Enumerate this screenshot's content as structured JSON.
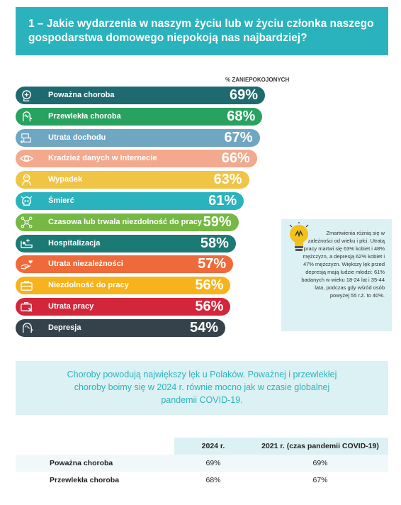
{
  "title": "1 – Jakie wydarzenia w naszym życiu lub w życiu członka naszego gospodarstwa domowego niepokoją nas najbardziej?",
  "column_label": "% ZANIEPOKOJONYCH",
  "chart_data": {
    "type": "bar",
    "title": "1 – Jakie wydarzenia w naszym życiu lub w życiu członka naszego gospodarstwa domowego niepokoją nas najbardziej?",
    "value_label": "% ZANIEPOKOJONYCH",
    "categories": [
      "Poważna choroba",
      "Przewlekła choroba",
      "Utrata dochodu",
      "Kradzież danych w Internecie",
      "Wypadek",
      "Śmierć",
      "Czasowa lub trwała niezdolność do pracy",
      "Hospitalizacja",
      "Utrata niezależności",
      "Niezdolność do pracy",
      "Utrata pracy",
      "Depresja"
    ],
    "values": [
      69,
      68,
      67,
      66,
      63,
      61,
      59,
      58,
      57,
      56,
      56,
      54
    ],
    "value_texts": [
      "69%",
      "68%",
      "67%",
      "66%",
      "63%",
      "61%",
      "59%",
      "58%",
      "57%",
      "56%",
      "56%",
      "54%"
    ],
    "colors": [
      "#1f6a70",
      "#27a35f",
      "#6fa6c2",
      "#f2a98e",
      "#f0c445",
      "#2bb3bd",
      "#75b844",
      "#1c7a74",
      "#ef6a3a",
      "#f6b31b",
      "#d4263a",
      "#34424b"
    ],
    "icons": [
      "head-medical-icon",
      "head-heartbeat-icon",
      "money-down-icon",
      "eye-icon",
      "injured-person-icon",
      "skull-icon",
      "person-network-icon",
      "hospital-bed-icon",
      "helping-hand-icon",
      "briefcase-icon",
      "briefcase-cross-icon",
      "head-brain-icon"
    ]
  },
  "tip": {
    "icon": "lightbulb-icon",
    "text": "Zmartwienia różnią się w zależności od wieku i płci. Utratą pracy martwi się 63% kobiet i 48% mężczyzn, a depresją 62% kobiet i 47% mężczyzn. Większy lęk przed depresją mają ludzie młodzi: 61% badanych w wieku 18-24 lat i 35-44 lata, podczas gdy wśród osób powyżej 55 r.ż. to 40%."
  },
  "summary": "Choroby powodują największy lęk u Polaków. Poważnej i przewlekłej choroby boimy się w 2024 r. równie mocno jak w czasie globalnej pandemii COVID-19.",
  "table": {
    "headers": [
      "",
      "2024 r.",
      "2021 r. (czas pandemii COVID-19)"
    ],
    "rows": [
      [
        "Poważna choroba",
        "69%",
        "69%"
      ],
      [
        "Przewlekła choroba",
        "68%",
        "67%"
      ]
    ]
  }
}
